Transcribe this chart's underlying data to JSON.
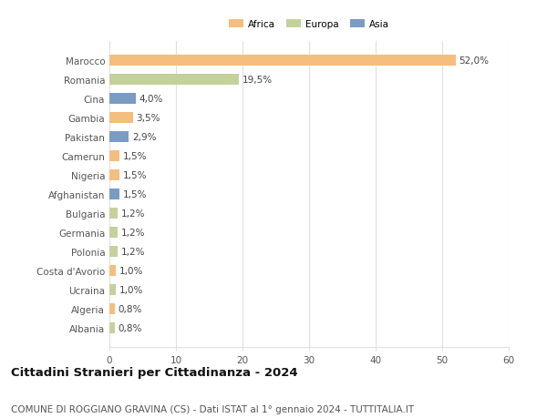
{
  "countries": [
    "Marocco",
    "Romania",
    "Cina",
    "Gambia",
    "Pakistan",
    "Camerun",
    "Nigeria",
    "Afghanistan",
    "Bulgaria",
    "Germania",
    "Polonia",
    "Costa d'Avorio",
    "Ucraina",
    "Algeria",
    "Albania"
  ],
  "values": [
    52.0,
    19.5,
    4.0,
    3.5,
    2.9,
    1.5,
    1.5,
    1.5,
    1.2,
    1.2,
    1.2,
    1.0,
    1.0,
    0.8,
    0.8
  ],
  "labels": [
    "52,0%",
    "19,5%",
    "4,0%",
    "3,5%",
    "2,9%",
    "1,5%",
    "1,5%",
    "1,5%",
    "1,2%",
    "1,2%",
    "1,2%",
    "1,0%",
    "1,0%",
    "0,8%",
    "0,8%"
  ],
  "continents": [
    "Africa",
    "Europa",
    "Asia",
    "Africa",
    "Asia",
    "Africa",
    "Africa",
    "Asia",
    "Europa",
    "Europa",
    "Europa",
    "Africa",
    "Europa",
    "Africa",
    "Europa"
  ],
  "colors": {
    "Africa": "#F4BE7E",
    "Europa": "#C5D19B",
    "Asia": "#7A9CC4"
  },
  "xlim": [
    0,
    60
  ],
  "xticks": [
    0,
    10,
    20,
    30,
    40,
    50,
    60
  ],
  "title": "Cittadini Stranieri per Cittadinanza - 2024",
  "subtitle": "COMUNE DI ROGGIANO GRAVINA (CS) - Dati ISTAT al 1° gennaio 2024 - TUTTITALIA.IT",
  "background_color": "#FFFFFF",
  "grid_color": "#E0E0E0",
  "bar_height": 0.55,
  "label_fontsize": 7.5,
  "tick_fontsize": 7.5,
  "title_fontsize": 9.5,
  "subtitle_fontsize": 7.5
}
